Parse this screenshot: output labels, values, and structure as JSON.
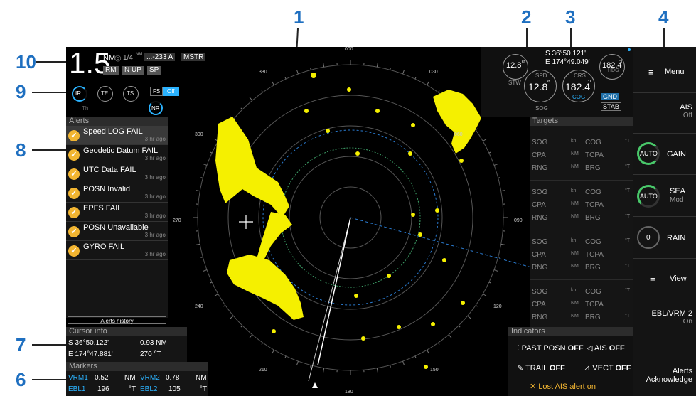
{
  "callouts": [
    "1",
    "2",
    "3",
    "4",
    "10",
    "9",
    "8",
    "7",
    "6"
  ],
  "range": {
    "value": "1.5",
    "unit": "NM",
    "rings": "1/4",
    "rings_unit": "NM",
    "alarm": "...-233 A",
    "mode": "MSTR",
    "buttons": [
      "RM",
      "N UP",
      "SP"
    ]
  },
  "filters": {
    "ir": "IR",
    "te": "TE",
    "ts": "TS",
    "fs": "FS",
    "fs_state": "Off",
    "th": "Th",
    "nr": "NR"
  },
  "alerts": {
    "title": "Alerts",
    "items": [
      {
        "text": "Speed LOG FAIL",
        "ago": "3 hr ago"
      },
      {
        "text": "Geodetic Datum FAIL",
        "ago": "3 hr ago"
      },
      {
        "text": "UTC Data FAIL",
        "ago": "3 hr ago"
      },
      {
        "text": "POSN Invalid",
        "ago": "3 hr ago"
      },
      {
        "text": "EPFS FAIL",
        "ago": "3 hr ago"
      },
      {
        "text": "POSN Unavailable",
        "ago": "3 hr ago"
      },
      {
        "text": "GYRO FAIL",
        "ago": "3 hr ago"
      }
    ],
    "history": "Alerts history"
  },
  "cursor": {
    "title": "Cursor info",
    "lat": "S 36°50.122'",
    "lon": "E 174°47.881'",
    "range": "0.93 NM",
    "bearing": "270 °T"
  },
  "markers": {
    "title": "Markers",
    "vrm1_label": "VRM1",
    "vrm1": "0.52",
    "vrm1_unit": "NM",
    "vrm2_label": "VRM2",
    "vrm2": "0.78",
    "vrm2_unit": "NM",
    "ebl1_label": "EBL1",
    "ebl1": "196",
    "ebl1_unit": "°T",
    "ebl2_label": "EBL2",
    "ebl2": "105",
    "ebl2_unit": "°T"
  },
  "nav": {
    "lat": "S 36°50.121'",
    "lon": "E 174°49.049'",
    "stw": "12.8",
    "stw_label": "STW",
    "kn": "kn",
    "sog": "12.8",
    "sog_label": "SOG",
    "spd": "SPD",
    "crs": "CRS",
    "crs_val": "182.4",
    "cog": "COG",
    "hdg": "182.4",
    "hdg_label": "HDG",
    "deg": "°T",
    "gnd": "GND",
    "stab": "STAB"
  },
  "targets": {
    "title": "Targets",
    "sog": "SOG",
    "cog": "COG",
    "cpa": "CPA",
    "tcpa": "TCPA",
    "rng": "RNG",
    "brg": "BRG",
    "kn": "kn",
    "nm": "NM",
    "degt": "°T"
  },
  "indicators": {
    "title": "Indicators",
    "past": "PAST POSN",
    "past_state": "OFF",
    "ais": "AIS",
    "ais_state": "OFF",
    "trail": "TRAIL",
    "trail_state": "OFF",
    "vect": "VECT",
    "vect_state": "OFF",
    "lost": "Lost AIS alert on"
  },
  "menu": {
    "menu": "Menu",
    "ais": "AIS",
    "ais_state": "Off",
    "auto": "AUTO",
    "gain": "GAIN",
    "sea": "SEA",
    "sea_state": "Mod",
    "rain_val": "0",
    "rain": "RAIN",
    "view": "View",
    "ebl": "EBL/VRM 2",
    "ebl_state": "On",
    "ack1": "Alerts",
    "ack2": "Acknowledge"
  },
  "bearings": [
    "000",
    "030",
    "060",
    "090",
    "120",
    "150",
    "180",
    "210",
    "240",
    "270",
    "300",
    "330"
  ],
  "colors": {
    "echo": "#f5f000",
    "accent": "#2bb3ff",
    "green": "#49c86a",
    "alert": "#f2b531"
  }
}
